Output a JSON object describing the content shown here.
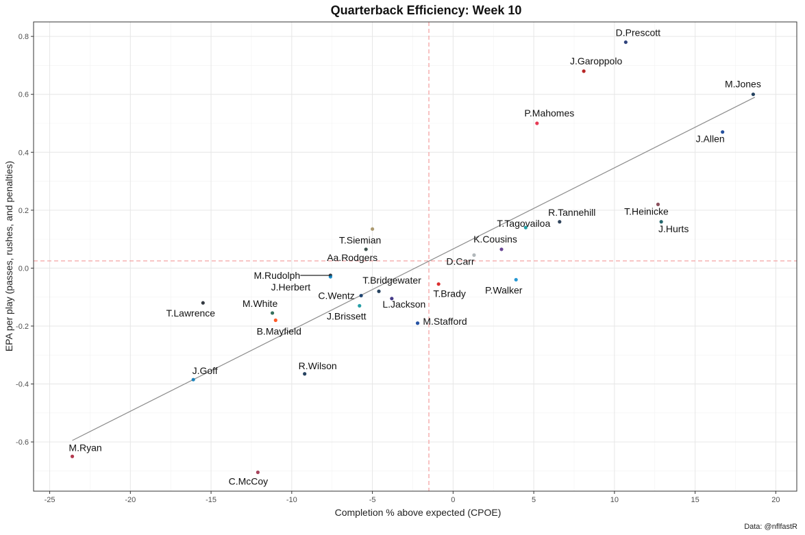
{
  "chart_data": {
    "type": "scatter",
    "title": "Quarterback Efficiency: Week 10",
    "xlabel": "Completion % above expected (CPOE)",
    "ylabel": "EPA per play (passes, rushes, and penalties)",
    "caption": "Data: @nflfastR",
    "xlim": [
      -26,
      21.3
    ],
    "ylim": [
      -0.77,
      0.85
    ],
    "x_ticks": [
      -25,
      -20,
      -15,
      -10,
      -5,
      0,
      5,
      10,
      15,
      20
    ],
    "x_tick_labels": [
      "-25",
      "-20",
      "-15",
      "-10",
      "-5",
      "0",
      "5",
      "10",
      "15",
      "20"
    ],
    "y_ticks": [
      -0.6,
      -0.4,
      -0.2,
      0.0,
      0.2,
      0.4,
      0.6,
      0.8
    ],
    "y_tick_labels": [
      "-0.6",
      "-0.4",
      "-0.2",
      "0.0",
      "0.2",
      "0.4",
      "0.6",
      "0.8"
    ],
    "grid": true,
    "reference_lines": {
      "x": -1.5,
      "y": 0.025,
      "color": "#f4a3a3",
      "style": "dashed"
    },
    "trend_line": {
      "x": [
        -23.6,
        18.7
      ],
      "y": [
        -0.595,
        0.59
      ],
      "color": "#8c8c8c"
    },
    "points": [
      {
        "name": "D.Prescott",
        "x": 10.7,
        "y": 0.78,
        "color": "#0b2265"
      },
      {
        "name": "J.Garoppolo",
        "x": 8.1,
        "y": 0.68,
        "color": "#aa0000"
      },
      {
        "name": "M.Jones",
        "x": 18.6,
        "y": 0.6,
        "color": "#002244"
      },
      {
        "name": "P.Mahomes",
        "x": 5.2,
        "y": 0.5,
        "color": "#e31837"
      },
      {
        "name": "J.Allen",
        "x": 16.7,
        "y": 0.47,
        "color": "#00338d"
      },
      {
        "name": "T.Heinicke",
        "x": 12.7,
        "y": 0.22,
        "color": "#773141"
      },
      {
        "name": "R.Tannehill",
        "x": 6.6,
        "y": 0.16,
        "color": "#0c2340"
      },
      {
        "name": "J.Hurts",
        "x": 12.9,
        "y": 0.16,
        "color": "#004c54"
      },
      {
        "name": "T.Tagovailoa",
        "x": 4.5,
        "y": 0.14,
        "color": "#008e97"
      },
      {
        "name": "T.Siemian",
        "x": -5.0,
        "y": 0.135,
        "color": "#9f8958"
      },
      {
        "name": "Aa.Rodgers",
        "x": -5.4,
        "y": 0.065,
        "color": "#203731"
      },
      {
        "name": "K.Cousins",
        "x": 3.0,
        "y": 0.065,
        "color": "#4f2683"
      },
      {
        "name": "D.Carr",
        "x": 1.3,
        "y": 0.045,
        "color": "#a5acaf"
      },
      {
        "name": "M.Rudolph",
        "x": -7.6,
        "y": -0.025,
        "color": "#101820"
      },
      {
        "name": "J.Herbert",
        "x": -7.6,
        "y": -0.03,
        "color": "#0080c6"
      },
      {
        "name": "P.Walker",
        "x": 3.9,
        "y": -0.04,
        "color": "#0085ca"
      },
      {
        "name": "T.Brady",
        "x": -0.9,
        "y": -0.055,
        "color": "#d50a0a"
      },
      {
        "name": "T.Bridgewater",
        "x": -4.6,
        "y": -0.08,
        "color": "#002244"
      },
      {
        "name": "C.Wentz",
        "x": -5.7,
        "y": -0.095,
        "color": "#002c5f"
      },
      {
        "name": "L.Jackson",
        "x": -3.8,
        "y": -0.105,
        "color": "#241773"
      },
      {
        "name": "T.Lawrence",
        "x": -15.5,
        "y": -0.12,
        "color": "#101820"
      },
      {
        "name": "J.Brissett",
        "x": -5.8,
        "y": -0.13,
        "color": "#008e97"
      },
      {
        "name": "M.White",
        "x": -11.2,
        "y": -0.155,
        "color": "#125740"
      },
      {
        "name": "B.Mayfield",
        "x": -11.0,
        "y": -0.18,
        "color": "#ff3c00"
      },
      {
        "name": "M.Stafford",
        "x": -2.2,
        "y": -0.19,
        "color": "#003594"
      },
      {
        "name": "R.Wilson",
        "x": -9.2,
        "y": -0.365,
        "color": "#002244"
      },
      {
        "name": "J.Goff",
        "x": -16.1,
        "y": -0.385,
        "color": "#0076b6"
      },
      {
        "name": "M.Ryan",
        "x": -23.6,
        "y": -0.65,
        "color": "#a71930"
      },
      {
        "name": "C.McCoy",
        "x": -12.1,
        "y": -0.705,
        "color": "#97233f"
      }
    ]
  }
}
